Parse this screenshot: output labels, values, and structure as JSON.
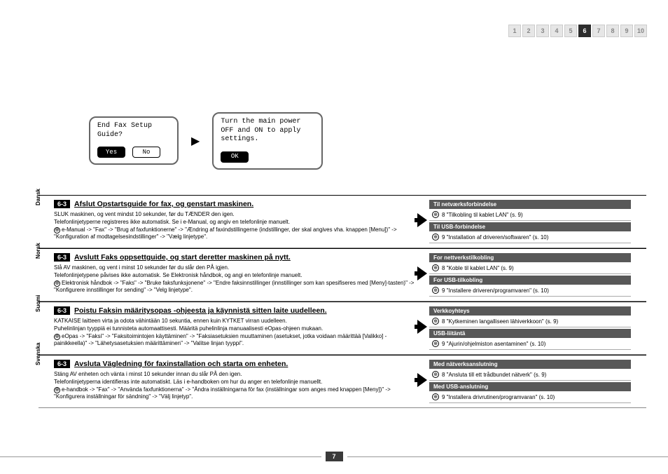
{
  "nav": {
    "pages": [
      "1",
      "2",
      "3",
      "4",
      "5",
      "6",
      "7",
      "8",
      "9",
      "10"
    ],
    "active_index": 5
  },
  "dialogs": {
    "left": {
      "line1": "End Fax Setup",
      "line2": "Guide?",
      "yes": "Yes",
      "no": "No"
    },
    "right": {
      "line1": "Turn the main power",
      "line2": "OFF and ON to apply",
      "line3": "settings.",
      "ok": "OK"
    }
  },
  "sections": [
    {
      "lang": "Dansk",
      "badge": "6-3",
      "title": "Afslut Opstartsguide for fax, og genstart maskinen.",
      "body_lines": [
        "SLUK maskinen, og vent mindst 10 sekunder, før du TÆNDER den igen.",
        "Telefonlinjetyperne registreres ikke automatisk. Se i e-Manual, og angiv en telefonlinje manuelt.",
        "e-Manual -> \"Fax\" -> \"Brug af faxfunktionerne\" -> \"Ændring af faxindstillingerne (indstillinger, der skal angives vha. knappen [Menu])\" -> \"Konfiguration af modtagelsesindstillinger\" -> \"Vælg linjetype\"."
      ],
      "right": [
        {
          "header": "Til netværksforbindelse",
          "link": "8 \"Tilkobling til kablet LAN\" (s. 9)"
        },
        {
          "header": "Til USB-forbindelse",
          "link": "9 \"Installation af driveren/softwaren\" (s. 10)"
        }
      ]
    },
    {
      "lang": "Norsk",
      "badge": "6-3",
      "title": "Avslutt Faks oppsettguide, og start deretter maskinen på nytt.",
      "body_lines": [
        "Slå AV maskinen, og vent i minst 10 sekunder før du slår den PÅ igjen.",
        "Telefonlinjetypene påvises ikke automatisk. Se Elektronisk håndbok, og angi en telefonlinje manuelt.",
        "Elektronisk håndbok -> \"Faks\" -> \"Bruke faksfunksjonene\" -> \"Endre faksinnstillinger (innstillinger som kan spesifiseres med [Meny]-tasten)\" -> \"Konfigurere innstillinger for sending\" -> \"Velg linjetype\"."
      ],
      "right": [
        {
          "header": "For nettverkstilkobling",
          "link": "8 \"Koble til kablet LAN\" (s. 9)"
        },
        {
          "header": "For USB-tilkobling",
          "link": "9 \"Installere driveren/programvaren\" (s. 10)"
        }
      ]
    },
    {
      "lang": "Suomi",
      "badge": "6-3",
      "title": "Poistu Faksin määritysopas -ohjeesta ja käynnistä sitten laite uudelleen.",
      "body_lines": [
        "KATKAISE laitteen virta ja odota vähintään 10 sekuntia, ennen kuin KYTKET virran uudelleen.",
        "Puhelinlinjan tyyppiä ei tunnisteta automaattisesti. Määritä puhelinlinja manuaalisesti eOpas-ohjeen mukaan.",
        "eOpas -> \"Faksi\" -> \"Faksitoimintojen käyttäminen\" -> \"Faksiasetuksien muuttaminen (asetukset, jotka voidaan määrittää [Valikko] -painikkeella)\" -> \"Lähetysasetuksien määrittäminen\" -> \"Valitse linjan tyyppi\"."
      ],
      "right": [
        {
          "header": "Verkkoyhteys",
          "link": "8 \"Kytkeminen langalliseen lähiverkkoon\" (s. 9)"
        },
        {
          "header": "USB-liitäntä",
          "link": "9 \"Ajurin/ohjelmiston asentaminen\" (s. 10)"
        }
      ]
    },
    {
      "lang": "Svenska",
      "badge": "6-3",
      "title": "Avsluta Vägledning för faxinstallation och starta om enheten.",
      "body_lines": [
        "Stäng AV enheten och vänta i minst 10 sekunder innan du slår PÅ den igen.",
        "Telefonlinjetyperna identifieras inte automatiskt. Läs i e-handboken om hur du anger en telefonlinje manuellt.",
        "e-handbok -> \"Fax\" -> \"Använda faxfunktionerna\" -> \"Ändra inställningarna för fax (inställningar som anges med knappen [Meny])\" -> \"Konfigurera inställningar för sändning\" -> \"Välj linjetyp\"."
      ],
      "right": [
        {
          "header": "Med nätverksanslutning",
          "link": "8 \"Ansluta till ett trådbundet nätverk\" (s. 9)"
        },
        {
          "header": "Med USB-anslutning",
          "link": "9 \"Installera drivrutinen/programvaran\" (s. 10)"
        }
      ]
    }
  ],
  "footer": {
    "page": "7"
  }
}
